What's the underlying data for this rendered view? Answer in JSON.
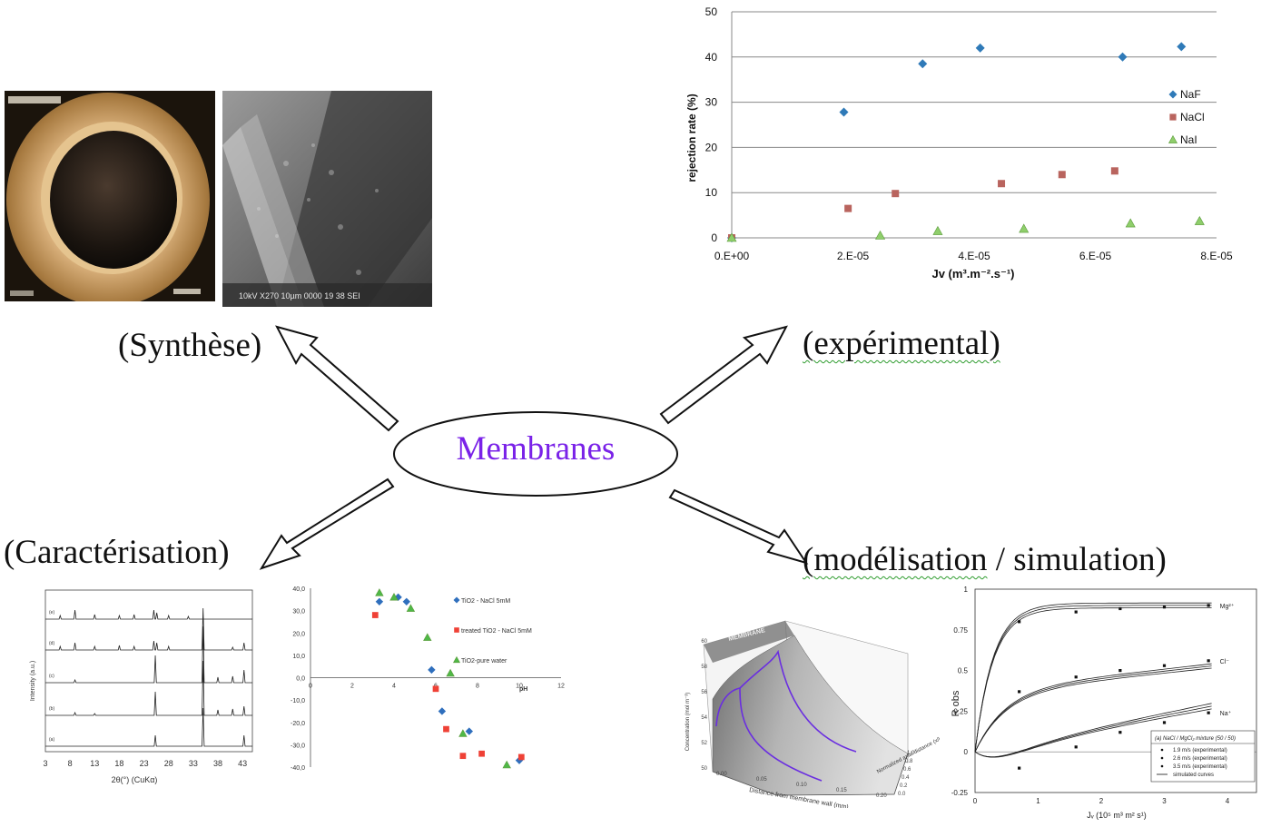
{
  "labels": {
    "center": "Membranes",
    "synthese": "(Synthèse)",
    "experimental": "(expérimental)",
    "caracterisation": "(Caractérisation)",
    "modelisation_a": "(modélisation",
    "modelisation_sep": " / ",
    "modelisation_b": "simulation)"
  },
  "colors": {
    "center_text": "#7a22e8",
    "naf": "#2f7ab8",
    "nacl": "#b9645e",
    "nai": "#8fce6b",
    "grid": "#888888"
  },
  "chart_data": [
    {
      "type": "scatter",
      "id": "rejection",
      "title": "",
      "xlabel": "Jv (m³.m⁻².s⁻¹)",
      "ylabel": "rejection rate (%)",
      "xlim": [
        0,
        8e-05
      ],
      "ylim": [
        0,
        50
      ],
      "x_ticks": [
        "0.E+00",
        "2.E-05",
        "4.E-05",
        "6.E-05",
        "8.E-05"
      ],
      "y_ticks": [
        "0",
        "10",
        "20",
        "30",
        "40",
        "50"
      ],
      "grid": true,
      "legend": "right",
      "series": [
        {
          "name": "NaF",
          "marker": "diamond",
          "x": [
            0,
            1.85e-05,
            3.15e-05,
            4.1e-05,
            6.45e-05,
            7.42e-05
          ],
          "y": [
            0,
            27.8,
            38.5,
            42,
            40,
            42.3
          ]
        },
        {
          "name": "NaCl",
          "marker": "square",
          "x": [
            0,
            1.92e-05,
            2.7e-05,
            4.45e-05,
            5.45e-05,
            6.32e-05
          ],
          "y": [
            0,
            6.5,
            9.8,
            12,
            14,
            14.8
          ]
        },
        {
          "name": "NaI",
          "marker": "triangle",
          "x": [
            0,
            2.45e-05,
            3.4e-05,
            4.82e-05,
            6.58e-05,
            7.72e-05
          ],
          "y": [
            0,
            0.5,
            1.5,
            2,
            3.2,
            3.7
          ]
        }
      ]
    },
    {
      "type": "line",
      "id": "xrd",
      "xlabel": "2θ(°) (CuKα)",
      "ylabel": "Intensity (a.u.)",
      "xlim": [
        3,
        45
      ],
      "x_ticks": [
        "3",
        "8",
        "13",
        "18",
        "23",
        "28",
        "33",
        "38",
        "43"
      ],
      "traces": [
        "(e)",
        "(d)",
        "(c)",
        "(b)",
        "(a)"
      ]
    },
    {
      "type": "scatter",
      "id": "zeta",
      "xlabel": "pH",
      "ylabel": "",
      "xlim": [
        0,
        12
      ],
      "ylim": [
        -40,
        40
      ],
      "x_ticks": [
        "0",
        "2",
        "4",
        "6",
        "8",
        "10",
        "12"
      ],
      "y_ticks": [
        "40,0",
        "30,0",
        "20,0",
        "10,0",
        "0,0",
        "-10,0",
        "-20,0",
        "-30,0",
        "-40,0"
      ],
      "legend": "right",
      "series": [
        {
          "name": "TiO2 - NaCl 5mM",
          "marker": "diamond",
          "x": [
            3.3,
            4.2,
            4.6,
            5.8,
            6.3,
            7.6,
            10.0
          ],
          "y": [
            34,
            36,
            34,
            3.5,
            -15,
            -24,
            -37
          ]
        },
        {
          "name": "treated TiO2 - NaCl 5mM",
          "marker": "square",
          "x": [
            3.1,
            6.0,
            6.5,
            7.3,
            8.2,
            10.1
          ],
          "y": [
            28,
            -5,
            -23,
            -35,
            -34,
            -35.5
          ]
        },
        {
          "name": "TiO2-pure water",
          "marker": "triangle",
          "x": [
            3.3,
            4.0,
            4.8,
            5.6,
            6.7,
            7.3,
            9.4
          ],
          "y": [
            38,
            36,
            31,
            18,
            2,
            -25,
            -39
          ]
        }
      ]
    },
    {
      "type": "area",
      "id": "concentration-surface",
      "xlabel": "Distance from membrane wall (mm)",
      "ylabel": "Concentration (mol m⁻³)",
      "zlabel": "Normalized axial distance (x/L)",
      "panel_label": "MEMBRANE",
      "x_ticks": [
        "0.00",
        "0.05",
        "0.10",
        "0.15",
        "0.20"
      ],
      "y_ticks": [
        "50",
        "52",
        "54",
        "56",
        "58",
        "60"
      ],
      "z_ticks": [
        "0.0",
        "0.2",
        "0.4",
        "0.6",
        "0.8",
        "1.0"
      ]
    },
    {
      "type": "line",
      "id": "r-obs",
      "xlabel": "Jᵥ (10⁵ m³ m² s¹)",
      "ylabel": "R obs",
      "xlim": [
        0,
        4
      ],
      "ylim": [
        -0.25,
        1
      ],
      "x_ticks": [
        "0",
        "1",
        "2",
        "3",
        "4"
      ],
      "y_ticks": [
        "1",
        "0.75",
        "0.5",
        "0.25",
        "0",
        "-0.25"
      ],
      "curve_labels": [
        "Mg²⁺",
        "Cl⁻",
        "Na⁺"
      ],
      "legend_title": "(a) NaCl / MgCl₂ mixture (50 / 50)",
      "legend_items": [
        "1.9 m/s (experimental)",
        "2.6 m/s (experimental)",
        "3.5 m/s (experimental)",
        "simulated curves"
      ],
      "series": [
        {
          "name": "Mg²⁺",
          "x": [
            0.7,
            1.6,
            2.3,
            3.0,
            3.7
          ],
          "y": [
            0.8,
            0.86,
            0.88,
            0.89,
            0.9
          ]
        },
        {
          "name": "Cl⁻",
          "x": [
            0.7,
            1.6,
            2.3,
            3.0,
            3.7
          ],
          "y": [
            0.37,
            0.46,
            0.5,
            0.53,
            0.56
          ]
        },
        {
          "name": "Na⁺",
          "x": [
            0.7,
            1.6,
            2.3,
            3.0,
            3.7
          ],
          "y": [
            -0.1,
            0.03,
            0.12,
            0.18,
            0.24
          ]
        }
      ]
    }
  ],
  "photos": {
    "optical_caption": "",
    "sem_caption": "10kV X270 10µm 0000 19 38 SEI"
  }
}
